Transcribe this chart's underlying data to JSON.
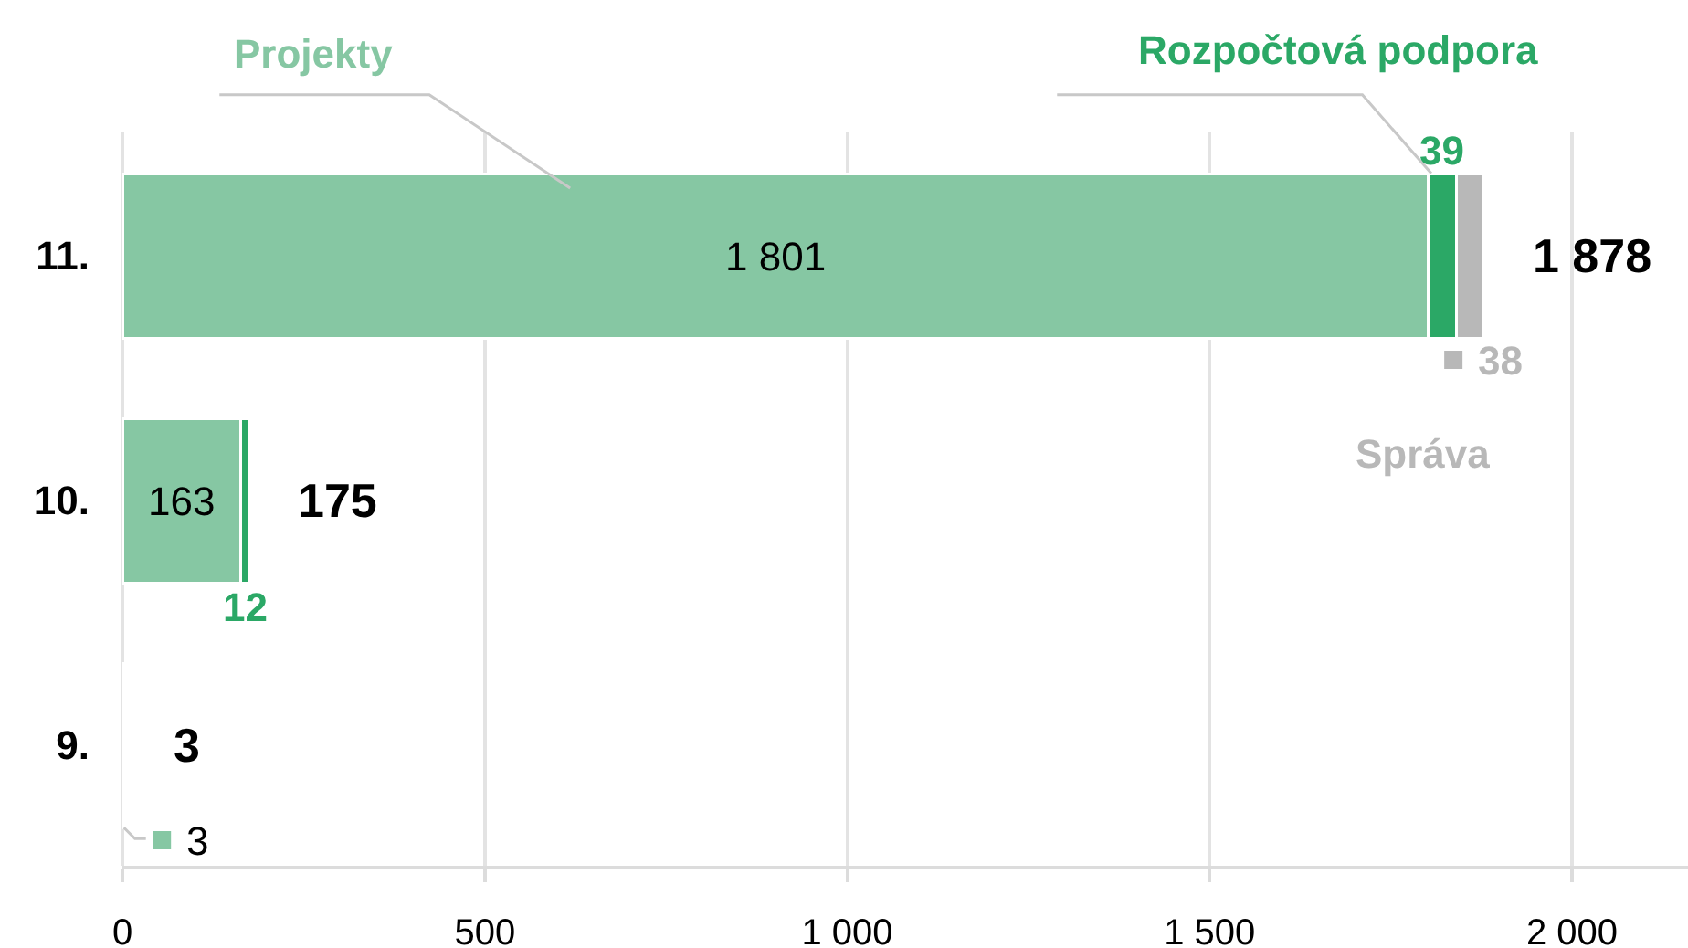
{
  "chart_data": {
    "type": "bar",
    "orientation": "horizontal",
    "stacked": true,
    "categories": [
      "11.",
      "10.",
      "9."
    ],
    "series": [
      {
        "name": "Projekty",
        "color": "#86c7a3",
        "values": [
          1801,
          163,
          3
        ],
        "value_labels": [
          "1 801",
          "163",
          "3"
        ]
      },
      {
        "name": "Rozpočtová podpora",
        "color": "#2ba866",
        "values": [
          39,
          12,
          null
        ],
        "value_labels": [
          "39",
          "12",
          null
        ]
      },
      {
        "name": "Správa",
        "color": "#b8b8b8",
        "values": [
          38,
          null,
          null
        ],
        "value_labels": [
          "38",
          null,
          null
        ]
      }
    ],
    "totals": [
      "1 878",
      "175",
      "3"
    ],
    "xlim": [
      0,
      2160
    ],
    "xticks": [
      0,
      500,
      {
        "value": 1000,
        "label": "1 000"
      },
      {
        "value": 1500,
        "label": "1 500"
      },
      {
        "value": 2000,
        "label": "2 000"
      }
    ],
    "grid": "x",
    "legend": false
  }
}
